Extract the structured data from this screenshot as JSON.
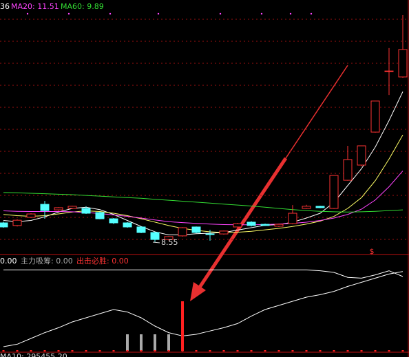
{
  "chart_data": [
    {
      "type": "candlestick",
      "legend": [
        {
          "text": "36",
          "color": "#ffffff"
        },
        {
          "text": "MA20: 11.51",
          "color": "#ff44ff"
        },
        {
          "text": "MA60: 9.89",
          "color": "#33dd33"
        }
      ],
      "annotation": "8.55",
      "up_color": "#ff3333",
      "down_color": "#54ffff",
      "ohlc": [
        [
          9.35,
          9.4,
          9.15,
          9.18
        ],
        [
          9.24,
          9.5,
          9.2,
          9.46
        ],
        [
          9.58,
          9.75,
          9.55,
          9.72
        ],
        [
          10.12,
          10.26,
          9.52,
          9.86
        ],
        [
          9.89,
          10.0,
          9.85,
          9.98
        ],
        [
          9.95,
          10.06,
          9.92,
          10.04
        ],
        [
          9.95,
          10.04,
          9.72,
          9.75
        ],
        [
          9.78,
          9.82,
          9.5,
          9.52
        ],
        [
          9.52,
          9.55,
          9.3,
          9.35
        ],
        [
          9.35,
          9.38,
          9.15,
          9.18
        ],
        [
          9.18,
          9.2,
          8.92,
          8.95
        ],
        [
          8.95,
          8.98,
          8.55,
          8.66
        ],
        [
          8.66,
          8.8,
          8.62,
          8.78
        ],
        [
          8.81,
          9.17,
          8.78,
          9.15
        ],
        [
          9.18,
          9.2,
          8.92,
          8.95
        ],
        [
          8.89,
          9.06,
          8.61,
          8.88
        ],
        [
          8.89,
          9.03,
          8.86,
          9.01
        ],
        [
          9.18,
          9.35,
          9.15,
          9.32
        ],
        [
          9.38,
          9.42,
          9.2,
          9.24
        ],
        [
          9.29,
          9.32,
          9.22,
          9.24
        ],
        [
          9.21,
          9.32,
          9.18,
          9.29
        ],
        [
          9.32,
          10.09,
          9.29,
          9.75
        ],
        [
          9.95,
          10.1,
          9.93,
          10.04
        ],
        [
          10.04,
          10.06,
          9.96,
          9.98
        ],
        [
          9.95,
          11.32,
          9.93,
          11.32
        ],
        [
          11.12,
          12.55,
          11.1,
          11.98
        ],
        [
          11.75,
          12.55,
          11.7,
          12.55
        ],
        [
          13.12,
          14.41,
          13.1,
          14.41
        ],
        [
          15.64,
          16.61,
          14.66,
          15.66
        ],
        [
          15.41,
          17.98,
          15.38,
          16.55
        ]
      ],
      "series": [
        {
          "color": "#ffffff",
          "values": [
            9.45,
            9.4,
            9.45,
            9.6,
            9.8,
            9.95,
            10.0,
            9.9,
            9.7,
            9.45,
            9.2,
            8.98,
            8.85,
            8.85,
            8.9,
            8.92,
            8.95,
            9.05,
            9.15,
            9.25,
            9.28,
            9.38,
            9.55,
            9.75,
            10.2,
            10.9,
            11.6,
            12.5,
            13.6,
            14.8
          ]
        },
        {
          "color": "#ffff66",
          "values": [
            9.7,
            9.65,
            9.62,
            9.65,
            9.72,
            9.8,
            9.85,
            9.82,
            9.75,
            9.65,
            9.52,
            9.38,
            9.24,
            9.12,
            9.04,
            8.98,
            8.95,
            8.96,
            9.0,
            9.06,
            9.12,
            9.2,
            9.3,
            9.42,
            9.62,
            9.95,
            10.4,
            11.1,
            12.0,
            13.0
          ]
        },
        {
          "color": "#ff44ff",
          "values": [
            9.85,
            9.83,
            9.82,
            9.82,
            9.82,
            9.81,
            9.78,
            9.74,
            9.68,
            9.62,
            9.55,
            9.47,
            9.4,
            9.36,
            9.33,
            9.3,
            9.28,
            9.27,
            9.27,
            9.28,
            9.3,
            9.33,
            9.38,
            9.45,
            9.55,
            9.7,
            9.92,
            10.3,
            10.85,
            11.51
          ]
        },
        {
          "color": "#33dd33",
          "values": [
            10.61,
            10.6,
            10.58,
            10.56,
            10.54,
            10.52,
            10.49,
            10.46,
            10.43,
            10.4,
            10.37,
            10.33,
            10.29,
            10.25,
            10.21,
            10.17,
            10.13,
            10.09,
            10.05,
            10.0,
            9.95,
            9.9,
            9.86,
            9.83,
            9.81,
            9.8,
            9.81,
            9.83,
            9.86,
            9.89
          ]
        }
      ]
    },
    {
      "type": "indicator",
      "legend": [
        {
          "text": "0.00",
          "color": "#ffffff"
        },
        {
          "text": "主力吸筹: 0.00",
          "color": "#aaaaaa"
        },
        {
          "text": "出击必胜: 0.00",
          "color": "#ff3333"
        }
      ],
      "footer": "MA10: 295455.20",
      "series": [
        {
          "kind": "line",
          "color": "#ffffff",
          "values": [
            98,
            98,
            98,
            98,
            98,
            98,
            98,
            98,
            98,
            98,
            98,
            98,
            98,
            98,
            98,
            98,
            98,
            98,
            98,
            98,
            98,
            98,
            98,
            97,
            95,
            89,
            88,
            92,
            97,
            90
          ]
        },
        {
          "kind": "line",
          "color": "#ffffff",
          "values": [
            5,
            8,
            15,
            22,
            28,
            35,
            40,
            45,
            50,
            47,
            40,
            30,
            22,
            18,
            20,
            24,
            28,
            33,
            42,
            50,
            55,
            60,
            65,
            68,
            72,
            78,
            83,
            88,
            93,
            96
          ]
        },
        {
          "kind": "bar",
          "color": "#aaaaaa",
          "values": [
            null,
            null,
            null,
            null,
            null,
            null,
            null,
            null,
            null,
            20,
            20,
            20,
            20,
            null,
            null,
            null,
            null,
            null,
            null,
            null,
            null,
            null,
            null,
            null,
            null,
            null,
            null,
            null,
            null,
            null
          ]
        },
        {
          "kind": "bar",
          "color": "#ff2020",
          "values": [
            null,
            null,
            null,
            null,
            null,
            null,
            null,
            null,
            null,
            null,
            null,
            null,
            null,
            60,
            null,
            null,
            null,
            null,
            null,
            null,
            null,
            null,
            null,
            null,
            null,
            null,
            null,
            null,
            null,
            null
          ]
        }
      ]
    }
  ]
}
